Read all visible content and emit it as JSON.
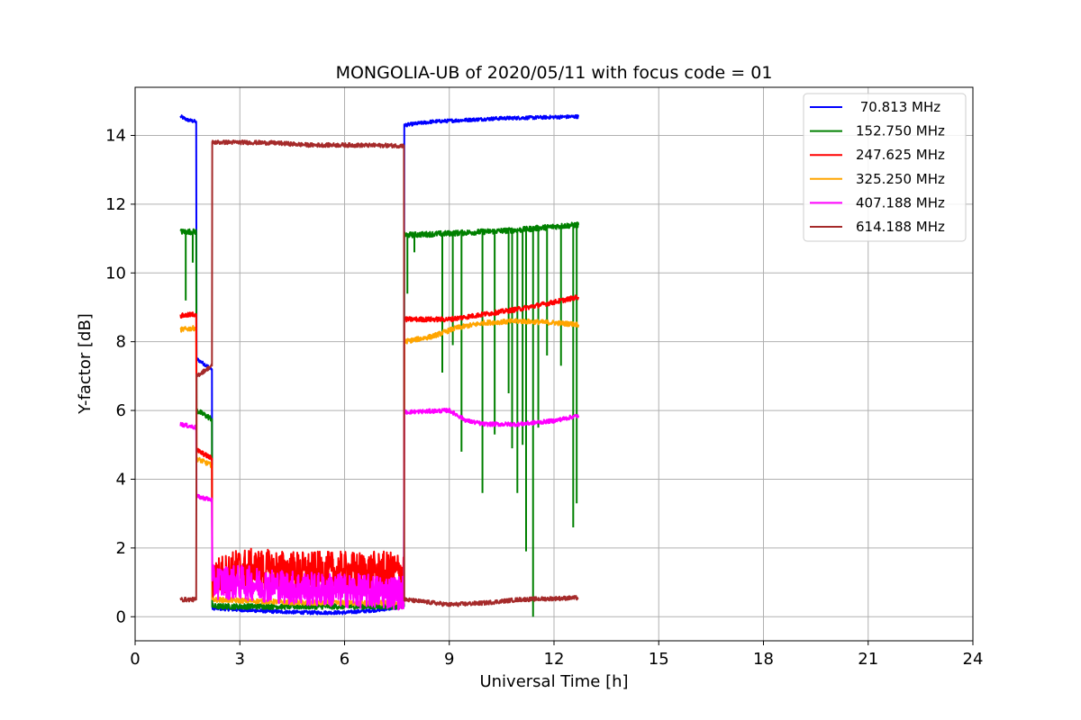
{
  "chart_data": {
    "type": "line",
    "title": "MONGOLIA-UB of 2020/05/11 with focus code = 01",
    "xlabel": "Universal Time [h]",
    "ylabel": "Y-factor [dB]",
    "xlim": [
      0,
      24
    ],
    "ylim": [
      -0.7,
      15.4
    ],
    "xticks": [
      0,
      3,
      6,
      9,
      12,
      15,
      18,
      21,
      24
    ],
    "yticks": [
      0,
      2,
      4,
      6,
      8,
      10,
      12,
      14
    ],
    "grid": true,
    "legend_position": "top-right",
    "series": [
      {
        "name": " 70.813 MHz",
        "color": "#0000ff",
        "points": [
          [
            1.3,
            14.55
          ],
          [
            1.5,
            14.45
          ],
          [
            1.75,
            14.4
          ],
          [
            1.76,
            7.5
          ],
          [
            2.2,
            7.2
          ],
          [
            2.21,
            0.25
          ],
          [
            3.0,
            0.2
          ],
          [
            4.0,
            0.15
          ],
          [
            5.0,
            0.12
          ],
          [
            6.0,
            0.12
          ],
          [
            7.0,
            0.2
          ],
          [
            7.7,
            0.3
          ],
          [
            7.71,
            14.3
          ],
          [
            8.5,
            14.4
          ],
          [
            9.5,
            14.45
          ],
          [
            10.5,
            14.5
          ],
          [
            11.5,
            14.52
          ],
          [
            12.7,
            14.55
          ]
        ],
        "noise": 0.05
      },
      {
        "name": "152.750 MHz",
        "color": "#008000",
        "points": [
          [
            1.3,
            11.2
          ],
          [
            1.75,
            11.2
          ],
          [
            1.76,
            6.0
          ],
          [
            2.2,
            5.75
          ],
          [
            2.21,
            0.3
          ],
          [
            3.0,
            0.3
          ],
          [
            5.0,
            0.3
          ],
          [
            7.7,
            0.3
          ],
          [
            7.71,
            11.1
          ],
          [
            9.0,
            11.15
          ],
          [
            10.0,
            11.2
          ],
          [
            11.0,
            11.25
          ],
          [
            12.0,
            11.35
          ],
          [
            12.7,
            11.4
          ]
        ],
        "noise": 0.08,
        "dips": [
          [
            1.45,
            9.2
          ],
          [
            1.65,
            10.3
          ],
          [
            7.8,
            9.4
          ],
          [
            8.0,
            10.6
          ],
          [
            8.8,
            7.1
          ],
          [
            9.1,
            7.9
          ],
          [
            9.35,
            4.8
          ],
          [
            9.95,
            3.6
          ],
          [
            10.3,
            5.3
          ],
          [
            10.7,
            6.5
          ],
          [
            10.8,
            4.9
          ],
          [
            10.95,
            3.6
          ],
          [
            11.1,
            5.0
          ],
          [
            11.2,
            1.9
          ],
          [
            11.4,
            0.0
          ],
          [
            11.55,
            5.5
          ],
          [
            11.8,
            7.6
          ],
          [
            12.2,
            7.3
          ],
          [
            12.55,
            2.6
          ],
          [
            12.65,
            3.3
          ]
        ]
      },
      {
        "name": "247.625 MHz",
        "color": "#ff0000",
        "points": [
          [
            1.3,
            8.75
          ],
          [
            1.75,
            8.8
          ],
          [
            1.76,
            4.85
          ],
          [
            2.2,
            4.6
          ],
          [
            2.21,
            1.1
          ],
          [
            3.0,
            1.4
          ],
          [
            5.0,
            1.3
          ],
          [
            7.7,
            1.3
          ],
          [
            7.71,
            8.65
          ],
          [
            9.0,
            8.65
          ],
          [
            10.0,
            8.8
          ],
          [
            11.0,
            8.95
          ],
          [
            12.0,
            9.15
          ],
          [
            12.7,
            9.3
          ]
        ],
        "noise": 0.07,
        "noisy_segment": [
          2.21,
          7.7,
          0.6
        ]
      },
      {
        "name": "325.250 MHz",
        "color": "#ffa500",
        "points": [
          [
            1.3,
            8.35
          ],
          [
            1.75,
            8.4
          ],
          [
            1.76,
            4.6
          ],
          [
            2.2,
            4.4
          ],
          [
            2.21,
            0.5
          ],
          [
            5.0,
            0.4
          ],
          [
            7.7,
            0.4
          ],
          [
            7.71,
            8.0
          ],
          [
            8.5,
            8.15
          ],
          [
            9.2,
            8.4
          ],
          [
            10.0,
            8.55
          ],
          [
            11.0,
            8.6
          ],
          [
            12.0,
            8.55
          ],
          [
            12.7,
            8.5
          ]
        ],
        "noise": 0.07
      },
      {
        "name": "407.188 MHz",
        "color": "#ff00ff",
        "points": [
          [
            1.3,
            5.6
          ],
          [
            1.75,
            5.5
          ],
          [
            1.76,
            3.5
          ],
          [
            2.2,
            3.4
          ],
          [
            2.21,
            1.0
          ],
          [
            3.0,
            1.0
          ],
          [
            5.0,
            0.8
          ],
          [
            7.7,
            0.7
          ],
          [
            7.71,
            5.95
          ],
          [
            9.0,
            6.0
          ],
          [
            9.5,
            5.7
          ],
          [
            10.0,
            5.6
          ],
          [
            11.0,
            5.6
          ],
          [
            12.0,
            5.7
          ],
          [
            12.7,
            5.85
          ]
        ],
        "noise": 0.06,
        "noisy_segment": [
          2.21,
          7.7,
          0.5
        ]
      },
      {
        "name": "614.188 MHz",
        "color": "#a52a2a",
        "points": [
          [
            1.3,
            0.5
          ],
          [
            1.75,
            0.5
          ],
          [
            1.76,
            7.0
          ],
          [
            2.2,
            7.3
          ],
          [
            2.21,
            13.8
          ],
          [
            3.0,
            13.8
          ],
          [
            4.0,
            13.78
          ],
          [
            5.0,
            13.72
          ],
          [
            6.0,
            13.72
          ],
          [
            7.7,
            13.7
          ],
          [
            7.71,
            0.5
          ],
          [
            9.0,
            0.35
          ],
          [
            10.0,
            0.4
          ],
          [
            11.0,
            0.5
          ],
          [
            12.7,
            0.55
          ]
        ],
        "noise": 0.06
      }
    ]
  }
}
